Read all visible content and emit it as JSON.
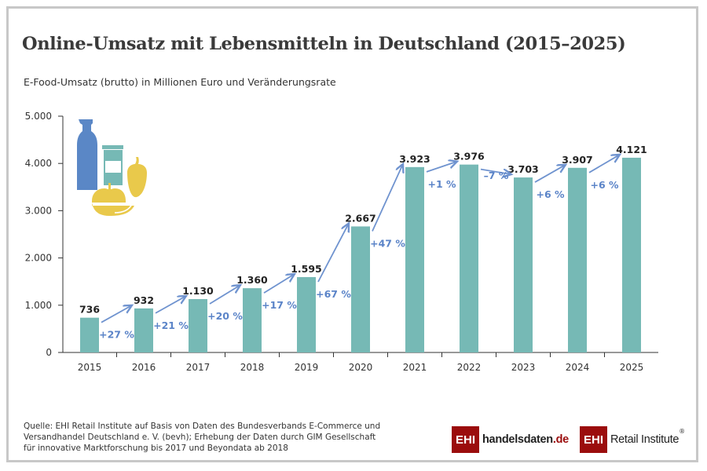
{
  "title": "Online-Umsatz mit Lebensmitteln in Deutschland (2015–2025)",
  "subtitle": "E-Food-Umsatz (brutto) in Millionen Euro und Veränderungsrate",
  "chart_data": {
    "type": "bar",
    "categories": [
      "2015",
      "2016",
      "2017",
      "2018",
      "2019",
      "2020",
      "2021",
      "2022",
      "2023",
      "2024",
      "2025"
    ],
    "values": [
      736,
      932,
      1130,
      1360,
      1595,
      2667,
      3923,
      3976,
      3703,
      3907,
      4121
    ],
    "value_labels": [
      "736",
      "932",
      "1.130",
      "1.360",
      "1.595",
      "2.667",
      "3.923",
      "3.976",
      "3.703",
      "3.907",
      "4.121"
    ],
    "change_labels": [
      "+27 %",
      "+21 %",
      "+20 %",
      "+17 %",
      "+67 %",
      "+47 %",
      "+1 %",
      "–7 %",
      "+6 %",
      "+6 %"
    ],
    "ylim": [
      0,
      5000
    ],
    "yticks": [
      "0",
      "1.000",
      "2.000",
      "3.000",
      "4.000",
      "5.000"
    ],
    "ytick_values": [
      0,
      1000,
      2000,
      3000,
      4000,
      5000
    ],
    "grid": false,
    "colors": {
      "bar": "#76b9b5",
      "arrow": "#6f93cf",
      "change_text": "#5b84c8"
    }
  },
  "source": "Quelle: EHI Retail Institute auf Basis von Daten des Bundesverbands E-Commerce und Versandhandel Deutschland e. V. (bevh); Erhebung der Daten durch GIM Gesellschaft für innovative Marktforschung bis 2017 und Beyondata ab 2018",
  "logos": {
    "ehi": "EHI",
    "handelsdaten_main": "handelsdaten",
    "handelsdaten_tld": ".de",
    "retail": "Retail Institute",
    "registered": "®"
  }
}
